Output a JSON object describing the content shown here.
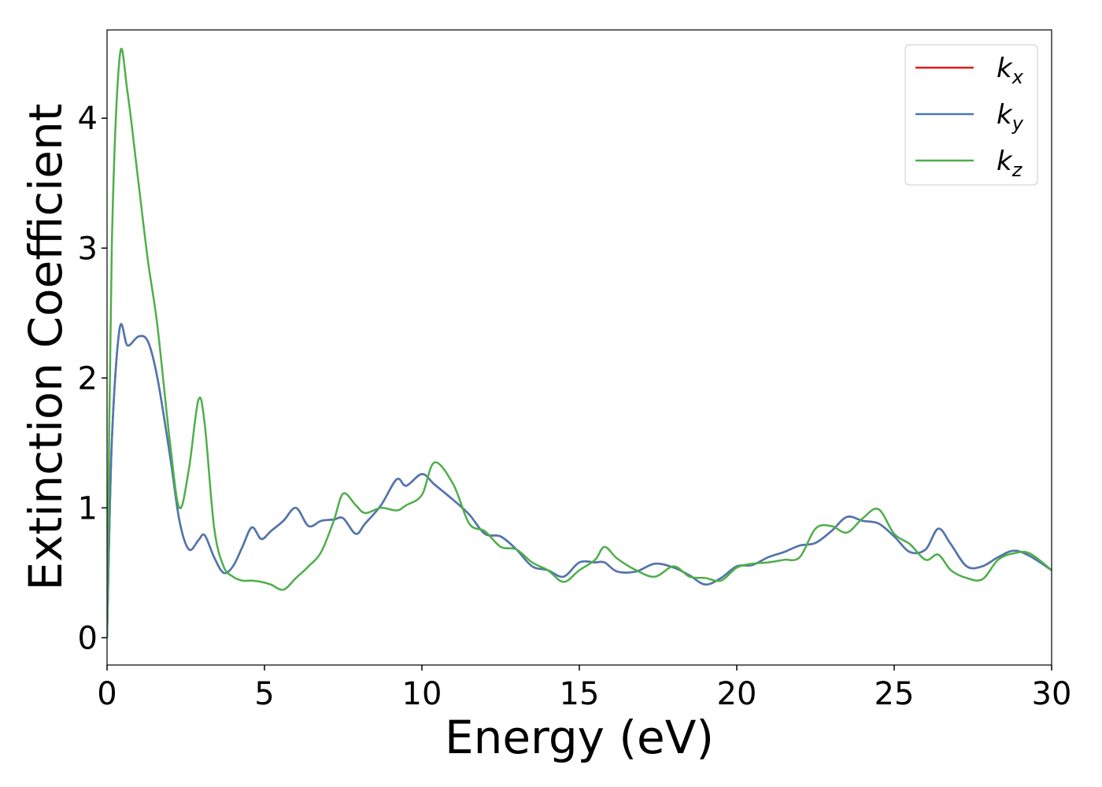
{
  "chart_data": {
    "type": "line",
    "xlabel": "Energy (eV)",
    "ylabel": "Extinction Coefficient",
    "x": [
      0,
      0.15,
      0.4,
      0.65,
      1,
      1.3,
      1.6,
      2,
      2.3,
      2.6,
      2.9,
      3.1,
      3.4,
      3.7,
      4.0,
      4.3,
      4.6,
      4.9,
      5.2,
      5.6,
      6.0,
      6.4,
      6.8,
      7.2,
      7.5,
      7.9,
      8.2,
      8.7,
      9.2,
      9.5,
      10.0,
      10.4,
      11.0,
      11.5,
      12.0,
      12.5,
      13.0,
      13.5,
      14.0,
      14.5,
      15.0,
      15.5,
      15.8,
      16.2,
      16.8,
      17.4,
      18.0,
      18.5,
      19.0,
      19.5,
      20.0,
      20.5,
      21.0,
      21.5,
      22.0,
      22.5,
      23.0,
      23.5,
      24.0,
      24.5,
      25.0,
      25.5,
      26.0,
      26.4,
      26.8,
      27.3,
      27.8,
      28.3,
      28.8,
      29.3,
      30
    ],
    "series": [
      {
        "name": "kx",
        "color": "#e41a1c",
        "values": [
          0,
          1.5,
          2.38,
          2.25,
          2.32,
          2.28,
          2.0,
          1.4,
          0.9,
          0.68,
          0.75,
          0.79,
          0.62,
          0.5,
          0.55,
          0.7,
          0.85,
          0.76,
          0.82,
          0.9,
          1.0,
          0.86,
          0.9,
          0.91,
          0.92,
          0.8,
          0.88,
          1.02,
          1.22,
          1.17,
          1.26,
          1.18,
          1.06,
          0.95,
          0.8,
          0.78,
          0.68,
          0.55,
          0.52,
          0.47,
          0.58,
          0.58,
          0.58,
          0.51,
          0.51,
          0.57,
          0.54,
          0.48,
          0.41,
          0.46,
          0.55,
          0.56,
          0.62,
          0.66,
          0.71,
          0.73,
          0.82,
          0.93,
          0.9,
          0.88,
          0.78,
          0.66,
          0.68,
          0.84,
          0.72,
          0.55,
          0.55,
          0.62,
          0.67,
          0.63,
          0.52
        ]
      },
      {
        "name": "ky",
        "color": "#4a78b2",
        "values": [
          0,
          1.5,
          2.38,
          2.25,
          2.32,
          2.28,
          2.0,
          1.4,
          0.9,
          0.68,
          0.75,
          0.79,
          0.62,
          0.5,
          0.55,
          0.7,
          0.85,
          0.76,
          0.82,
          0.9,
          1.0,
          0.86,
          0.9,
          0.91,
          0.92,
          0.8,
          0.88,
          1.02,
          1.22,
          1.17,
          1.26,
          1.18,
          1.06,
          0.95,
          0.8,
          0.78,
          0.68,
          0.55,
          0.52,
          0.47,
          0.58,
          0.58,
          0.58,
          0.51,
          0.51,
          0.57,
          0.54,
          0.48,
          0.41,
          0.46,
          0.55,
          0.56,
          0.62,
          0.66,
          0.71,
          0.73,
          0.82,
          0.93,
          0.9,
          0.88,
          0.78,
          0.66,
          0.68,
          0.84,
          0.72,
          0.55,
          0.55,
          0.62,
          0.67,
          0.63,
          0.52
        ]
      },
      {
        "name": "kz",
        "color": "#4daf4a",
        "values": [
          0,
          3.0,
          4.47,
          4.2,
          3.5,
          2.9,
          2.4,
          1.5,
          1.0,
          1.3,
          1.83,
          1.65,
          0.85,
          0.55,
          0.47,
          0.44,
          0.44,
          0.43,
          0.41,
          0.37,
          0.46,
          0.55,
          0.66,
          0.9,
          1.11,
          1.02,
          0.96,
          1.0,
          0.98,
          1.02,
          1.1,
          1.35,
          1.18,
          0.88,
          0.82,
          0.7,
          0.68,
          0.58,
          0.52,
          0.43,
          0.52,
          0.6,
          0.7,
          0.61,
          0.52,
          0.47,
          0.55,
          0.47,
          0.46,
          0.44,
          0.54,
          0.57,
          0.58,
          0.6,
          0.62,
          0.84,
          0.86,
          0.81,
          0.92,
          0.99,
          0.8,
          0.72,
          0.6,
          0.64,
          0.52,
          0.46,
          0.45,
          0.6,
          0.65,
          0.65,
          0.52
        ]
      }
    ],
    "xlim": [
      0,
      30
    ],
    "xticks": [
      0,
      5,
      10,
      15,
      20,
      25,
      30
    ],
    "ylim": [
      -0.21,
      4.68
    ],
    "yticks": [
      0,
      1,
      2,
      3,
      4
    ],
    "legend": "upper right"
  }
}
